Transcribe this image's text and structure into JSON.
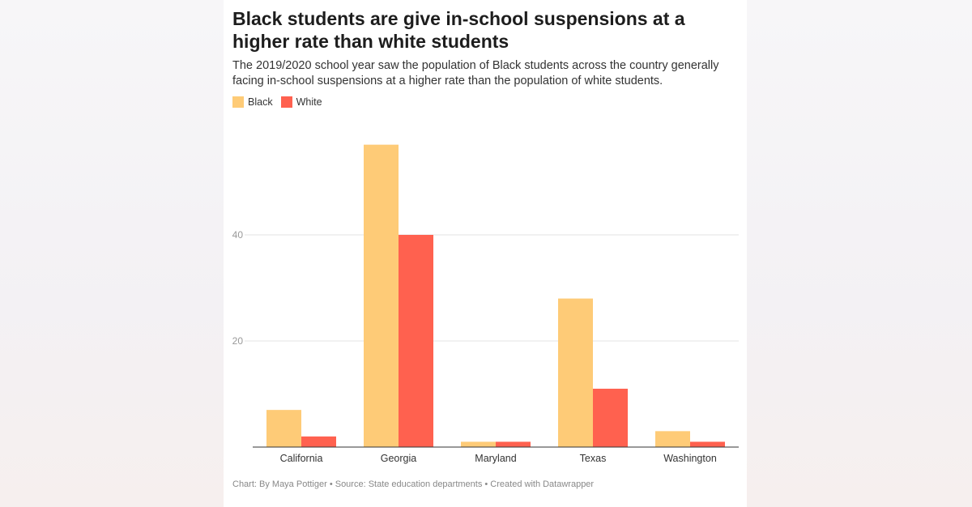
{
  "title": "Black students are give in-school suspensions at a higher rate than white students",
  "subtitle": "The 2019/2020 school year saw the population of Black students across the country generally facing in-school suspensions at a higher rate than the population of white students.",
  "footer": "Chart: By Maya Pottiger • Source: State education departments • Created with Datawrapper",
  "colors": {
    "black": "#fecb77",
    "white": "#ff614f"
  },
  "chart_data": {
    "type": "bar",
    "categories": [
      "California",
      "Georgia",
      "Maryland",
      "Texas",
      "Washington"
    ],
    "series": [
      {
        "name": "Black",
        "values": [
          7,
          57,
          1,
          28,
          3
        ]
      },
      {
        "name": "White",
        "values": [
          2,
          40,
          1,
          11,
          1
        ]
      }
    ],
    "ylim": [
      0,
      60
    ],
    "yticks": [
      20,
      40
    ],
    "xlabel": "",
    "ylabel": "",
    "legend": "top-left",
    "grid": true
  }
}
